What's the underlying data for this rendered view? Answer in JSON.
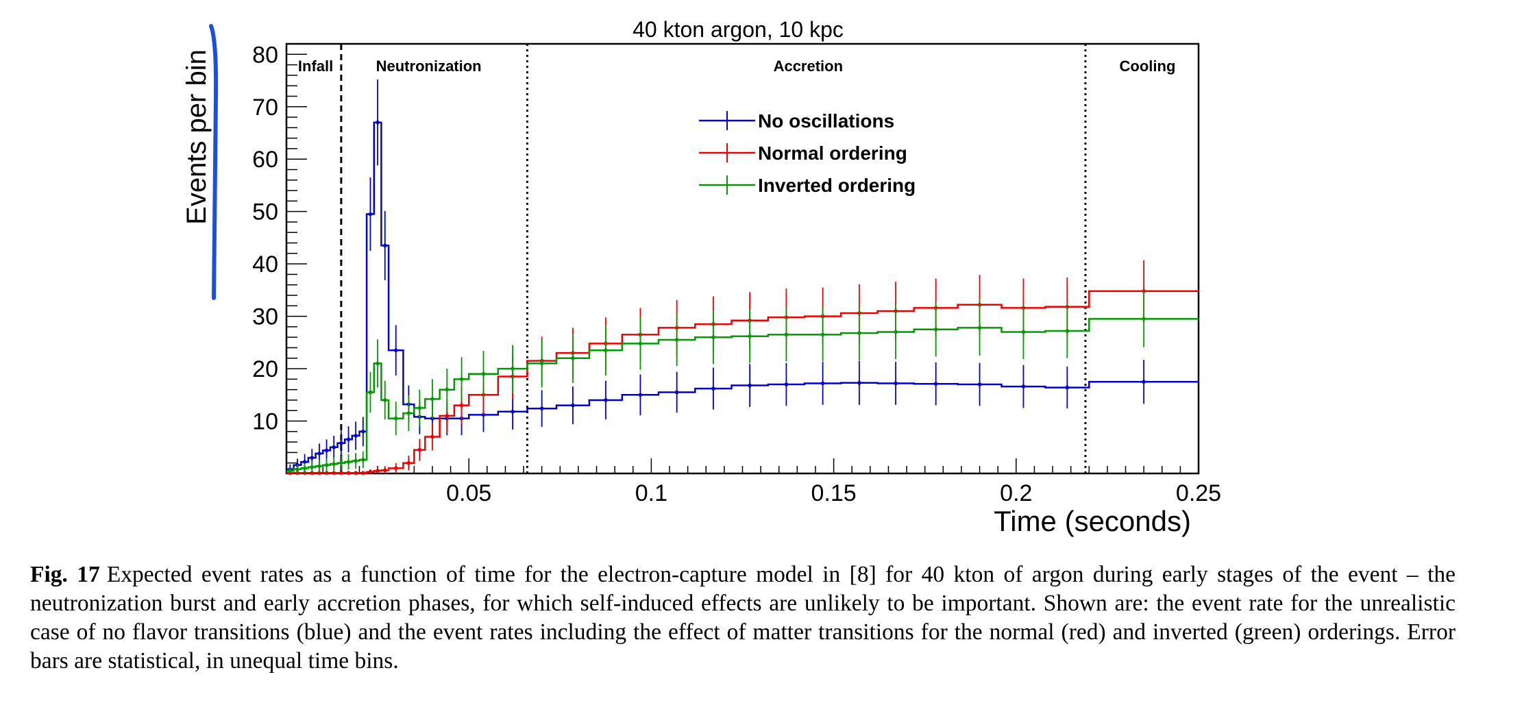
{
  "chart_data": {
    "type": "line",
    "title": "40 kton argon, 10 kpc",
    "xlabel": "Time (seconds)",
    "ylabel": "Events per bin",
    "xlim": [
      0,
      0.25
    ],
    "ylim": [
      0,
      82
    ],
    "x_ticks": [
      0.05,
      0.1,
      0.15,
      0.2,
      0.25
    ],
    "x_tick_labels": [
      "0.05",
      "0.1",
      "0.15",
      "0.2",
      "0.25"
    ],
    "y_ticks": [
      10,
      20,
      30,
      40,
      50,
      60,
      70,
      80
    ],
    "y_tick_labels": [
      "10",
      "20",
      "30",
      "40",
      "50",
      "60",
      "70",
      "80"
    ],
    "grid": false,
    "legend_position": "top-center",
    "bin_edges": [
      0,
      0.002,
      0.004,
      0.006,
      0.008,
      0.01,
      0.012,
      0.014,
      0.016,
      0.018,
      0.02,
      0.022,
      0.024,
      0.026,
      0.028,
      0.032,
      0.035,
      0.038,
      0.042,
      0.046,
      0.05,
      0.058,
      0.066,
      0.074,
      0.083,
      0.092,
      0.102,
      0.112,
      0.122,
      0.132,
      0.142,
      0.152,
      0.162,
      0.172,
      0.184,
      0.196,
      0.208,
      0.22,
      0.25
    ],
    "series": [
      {
        "name": "No oscillations",
        "color": "#0000cc",
        "values": [
          0.8,
          1.6,
          2.2,
          3.0,
          3.8,
          4.4,
          5.0,
          5.8,
          6.5,
          7.2,
          8.0,
          49.5,
          67.0,
          43.5,
          23.5,
          13.2,
          10.8,
          10.5,
          10.5,
          10.5,
          11.2,
          11.8,
          12.4,
          13.0,
          14.0,
          15.0,
          15.5,
          16.2,
          16.8,
          17.0,
          17.2,
          17.3,
          17.2,
          17.1,
          17.0,
          16.6,
          16.4,
          17.5
        ],
        "errors": [
          0.9,
          1.2,
          1.5,
          1.7,
          1.9,
          2.1,
          2.2,
          2.4,
          2.5,
          2.7,
          2.8,
          7.0,
          8.2,
          6.6,
          4.8,
          3.6,
          3.3,
          3.2,
          3.2,
          3.2,
          3.3,
          3.4,
          3.5,
          3.6,
          3.7,
          3.9,
          3.9,
          4.0,
          4.1,
          4.1,
          4.1,
          4.2,
          4.1,
          4.1,
          4.1,
          4.1,
          4.0,
          4.2
        ]
      },
      {
        "name": "Normal ordering",
        "color": "#ee0000",
        "values": [
          0.1,
          0.1,
          0.1,
          0.1,
          0.1,
          0.1,
          0.1,
          0.1,
          0.1,
          0.1,
          0.1,
          0.3,
          0.5,
          0.6,
          1.0,
          2.0,
          4.5,
          7.0,
          11.0,
          13.0,
          15.0,
          18.5,
          21.5,
          23.0,
          24.8,
          26.5,
          27.8,
          28.5,
          29.2,
          29.8,
          30.0,
          30.6,
          31.0,
          31.6,
          32.2,
          31.6,
          31.8,
          34.8
        ],
        "errors": [
          0.3,
          0.3,
          0.3,
          0.3,
          0.3,
          0.3,
          0.3,
          0.3,
          0.3,
          0.3,
          0.3,
          0.5,
          0.7,
          0.8,
          1.0,
          1.4,
          2.1,
          2.6,
          3.3,
          3.6,
          3.9,
          4.3,
          4.6,
          4.8,
          5.0,
          5.1,
          5.3,
          5.3,
          5.4,
          5.5,
          5.5,
          5.5,
          5.6,
          5.6,
          5.7,
          5.6,
          5.6,
          5.9
        ]
      },
      {
        "name": "Inverted ordering",
        "color": "#009900",
        "values": [
          0.5,
          0.8,
          1.0,
          1.2,
          1.4,
          1.6,
          1.8,
          2.0,
          2.2,
          2.4,
          2.6,
          15.5,
          21.0,
          14.0,
          10.5,
          11.5,
          12.5,
          14.2,
          16.0,
          18.0,
          19.0,
          20.0,
          21.0,
          22.0,
          23.5,
          24.8,
          25.5,
          26.0,
          26.2,
          26.5,
          26.5,
          26.8,
          27.0,
          27.5,
          27.8,
          27.0,
          27.2,
          29.5
        ],
        "errors": [
          0.7,
          0.9,
          1.0,
          1.1,
          1.2,
          1.3,
          1.3,
          1.4,
          1.5,
          1.5,
          1.6,
          3.9,
          4.6,
          3.7,
          3.2,
          3.4,
          3.5,
          3.8,
          4.0,
          4.2,
          4.4,
          4.5,
          4.6,
          4.7,
          4.8,
          5.0,
          5.0,
          5.1,
          5.1,
          5.1,
          5.1,
          5.2,
          5.2,
          5.2,
          5.3,
          5.2,
          5.2,
          5.4
        ]
      }
    ],
    "phase_boundaries": [
      {
        "x": 0.015,
        "style": "dashed"
      },
      {
        "x": 0.066,
        "style": "dotted"
      },
      {
        "x": 0.219,
        "style": "dotted"
      }
    ],
    "annotations": [
      {
        "text": "Infall",
        "x": 0.008
      },
      {
        "text": "Neutronization",
        "x": 0.039
      },
      {
        "text": "Accretion",
        "x": 0.143
      },
      {
        "text": "Cooling",
        "x": 0.236
      }
    ]
  },
  "caption": {
    "label": "Fig. 17",
    "text": "Expected event rates as a function of time for the electron-capture model in [8] for 40 kton of argon during early stages of the event – the neutronization burst and early accretion phases, for which self-induced effects are unlikely to be important. Shown are: the event rate for the unrealistic case of no flavor transitions (blue) and the event rates including the effect of matter transitions for the normal (red) and inverted (green) orderings. Error bars are statistical, in unequal time bins."
  }
}
